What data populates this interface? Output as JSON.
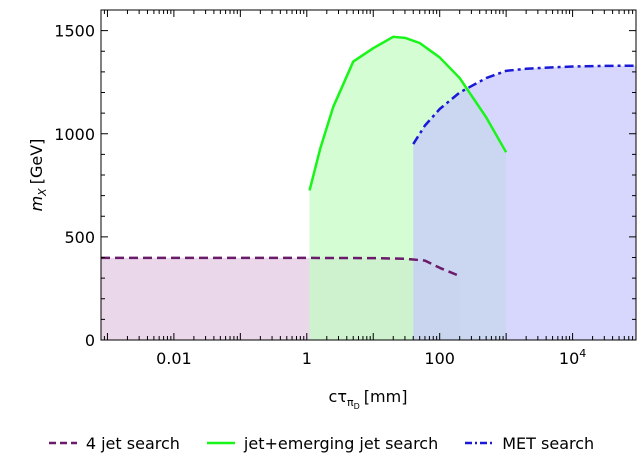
{
  "chart_data": {
    "type": "area",
    "title": "",
    "xlabel": "cτ",
    "xlabel_sub": "π",
    "xlabel_subsub": "D",
    "xlabel_unit": "[mm]",
    "ylabel": "m",
    "ylabel_sub": "X",
    "ylabel_unit": "[GeV]",
    "xscale": "log",
    "xlim": [
      0.0008,
      90000
    ],
    "ylim": [
      0,
      1600
    ],
    "grid": false,
    "legend_position": "bottom",
    "x_ticks": [
      {
        "value": 0.01,
        "label": "0.01"
      },
      {
        "value": 1,
        "label": "1"
      },
      {
        "value": 100,
        "label": "100"
      },
      {
        "value": 10000,
        "label": "10",
        "exp": "4"
      }
    ],
    "y_ticks": [
      {
        "value": 0,
        "label": "0"
      },
      {
        "value": 500,
        "label": "500"
      },
      {
        "value": 1000,
        "label": "1000"
      },
      {
        "value": 1500,
        "label": "1500"
      }
    ],
    "series": [
      {
        "name": "4 jet search",
        "color": "#6a1b6a",
        "fill": "#e2c8e2",
        "line_style": "dashed",
        "x": [
          0.0008,
          0.01,
          1,
          10,
          30,
          60,
          100,
          200
        ],
        "y": [
          398,
          398,
          398,
          397,
          394,
          385,
          350,
          310
        ]
      },
      {
        "name": "jet+emerging jet search",
        "color": "#19f519",
        "fill": "#c4fcc4",
        "line_style": "solid",
        "x": [
          1.1,
          1.6,
          2.5,
          5,
          10,
          20,
          30,
          50,
          100,
          200,
          500,
          1000
        ],
        "y": [
          725,
          930,
          1130,
          1350,
          1415,
          1470,
          1465,
          1440,
          1370,
          1270,
          1080,
          910
        ]
      },
      {
        "name": "MET search",
        "color": "#1a1ad6",
        "fill": "#c8c8fc",
        "line_style": "dashdot",
        "x": [
          40,
          60,
          100,
          200,
          500,
          1000,
          2000,
          5000,
          10000,
          30000,
          90000
        ],
        "y": [
          950,
          1040,
          1120,
          1200,
          1270,
          1305,
          1315,
          1322,
          1326,
          1329,
          1330
        ]
      }
    ]
  }
}
